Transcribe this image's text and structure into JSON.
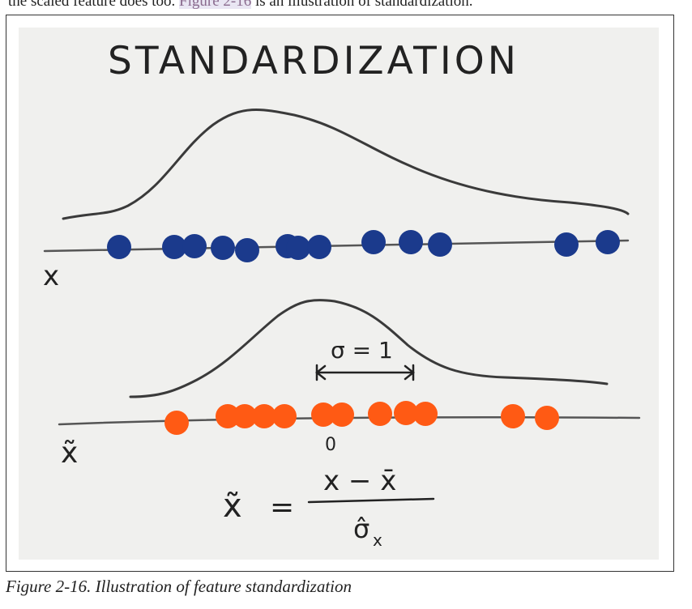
{
  "top_text": {
    "before": "the scaled feature does too. ",
    "link": "Figure 2-16",
    "after": " is an illustration of standardization."
  },
  "illustration": {
    "title": "STANDARDIZATION",
    "x_label": "x",
    "xtilde_label": "x̃",
    "zero_label": "0",
    "sigma_label": "σ = 1",
    "formula": {
      "lhs": "x̃",
      "equals": "=",
      "numerator": "x − x̄",
      "denominator": "σ̂",
      "denominator_sub": "x"
    },
    "colors": {
      "paper": "#f0f0ee",
      "ink": "#222222",
      "blue_dots": "#1b3a8c",
      "orange_dots": "#ff5a14"
    }
  },
  "caption": "Figure 2-16. Illustration of feature standardization"
}
